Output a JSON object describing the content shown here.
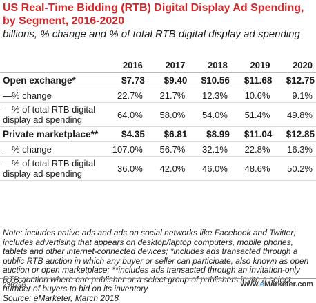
{
  "chart_data": {
    "type": "table",
    "title": "US Real-Time Bidding (RTB) Digital Display Ad Spending, by Segment, 2016-2020",
    "subtitle": "billions, % change and % of total RTB digital display ad spending",
    "columns": [
      "2016",
      "2017",
      "2018",
      "2019",
      "2020"
    ],
    "rows": [
      {
        "label": "Open exchange*",
        "kind": "seg",
        "values": [
          "$7.73",
          "$9.40",
          "$10.56",
          "$11.68",
          "$12.75"
        ]
      },
      {
        "label": "—% change",
        "kind": "chg",
        "values": [
          "22.7%",
          "21.7%",
          "12.3%",
          "10.6%",
          "9.1%"
        ]
      },
      {
        "label": "—% of total RTB digital display ad spending",
        "kind": "pct",
        "values": [
          "64.0%",
          "58.0%",
          "54.0%",
          "51.4%",
          "49.8%"
        ]
      },
      {
        "label": "Private marketplace**",
        "kind": "seg",
        "values": [
          "$4.35",
          "$6.81",
          "$8.99",
          "$11.04",
          "$12.85"
        ]
      },
      {
        "label": "—% change",
        "kind": "chg",
        "values": [
          "107.0%",
          "56.7%",
          "32.1%",
          "22.8%",
          "16.3%"
        ]
      },
      {
        "label": "—% of total RTB digital display ad spending",
        "kind": "pct",
        "values": [
          "36.0%",
          "42.0%",
          "46.0%",
          "48.6%",
          "50.2%"
        ]
      }
    ],
    "series": [
      {
        "name": "Open exchange*",
        "spending": [
          7.73,
          9.4,
          10.56,
          11.68,
          12.75
        ],
        "pct_change": [
          22.7,
          21.7,
          12.3,
          10.6,
          9.1
        ],
        "pct_of_total": [
          64.0,
          58.0,
          54.0,
          51.4,
          49.8
        ]
      },
      {
        "name": "Private marketplace**",
        "spending": [
          4.35,
          6.81,
          8.99,
          11.04,
          12.85
        ],
        "pct_change": [
          107.0,
          56.7,
          32.1,
          22.8,
          16.3
        ],
        "pct_of_total": [
          36.0,
          42.0,
          46.0,
          48.6,
          50.2
        ]
      }
    ]
  },
  "notes": "Note: includes native ads and ads on social networks like Facebook and Twitter; includes advertising that appears on desktop/laptop computers, mobile phones, tablets and other internet-connected devices; *includes ads transacted through a public RTB auction in which any buyer or seller can participate, also known as open auction or open marketplace; **includes ads transacted through an invitation-only RTB auction where one publisher or a select group of publishers invite a select number of buyers to bid on its inventory",
  "source": "Source: eMarketer, March 2018",
  "chart_id": "236266",
  "brand": {
    "prefix": "www.",
    "e": "e",
    "rest": "Marketer",
    "suffix": ".com"
  },
  "colors": {
    "title": "#d5262a",
    "brand_accent": "#2b7dbf"
  }
}
